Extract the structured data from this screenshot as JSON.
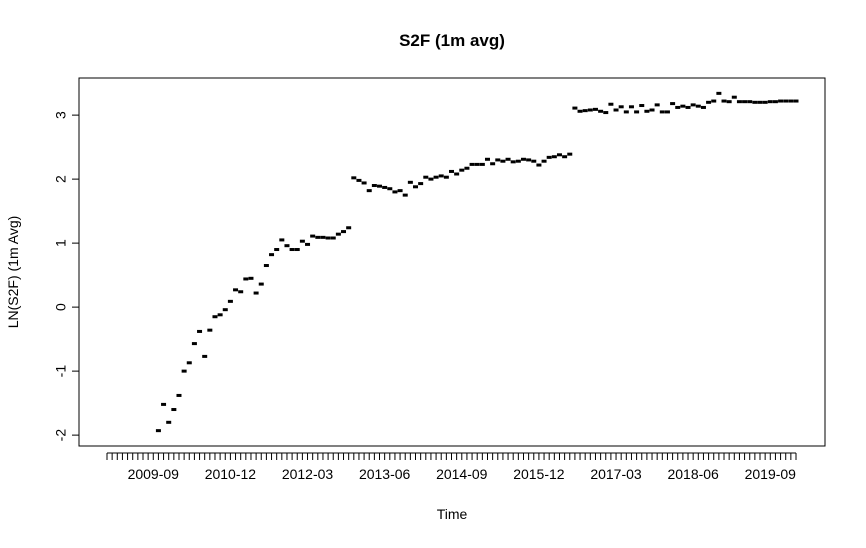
{
  "chart_data": {
    "type": "scatter",
    "title": "S2F (1m avg)",
    "x_label": "Time",
    "y_label": "LN(S2F) (1m Avg)",
    "categories": [
      null,
      null,
      null,
      null,
      null,
      null,
      null,
      null,
      null,
      "2009-09",
      null,
      null,
      null,
      null,
      null,
      null,
      null,
      null,
      null,
      null,
      null,
      null,
      null,
      null,
      "2010-12",
      null,
      null,
      null,
      null,
      null,
      null,
      null,
      null,
      null,
      null,
      null,
      null,
      null,
      null,
      "2012-03",
      null,
      null,
      null,
      null,
      null,
      null,
      null,
      null,
      null,
      null,
      null,
      null,
      null,
      null,
      "2013-06",
      null,
      null,
      null,
      null,
      null,
      null,
      null,
      null,
      null,
      null,
      null,
      null,
      null,
      null,
      "2014-09",
      null,
      null,
      null,
      null,
      null,
      null,
      null,
      null,
      null,
      null,
      null,
      null,
      null,
      null,
      "2015-12",
      null,
      null,
      null,
      null,
      null,
      null,
      null,
      null,
      null,
      null,
      null,
      null,
      null,
      null,
      "2017-03",
      null,
      null,
      null,
      null,
      null,
      null,
      null,
      null,
      null,
      null,
      null,
      null,
      null,
      null,
      "2018-06",
      null,
      null,
      null,
      null,
      null,
      null,
      null,
      null,
      null,
      null,
      null,
      null,
      null,
      null,
      "2019-09",
      null,
      null,
      null,
      null,
      null
    ],
    "values": [
      null,
      null,
      null,
      null,
      null,
      null,
      null,
      null,
      null,
      null,
      -1.93,
      -1.52,
      -1.8,
      -1.6,
      -1.38,
      -1.0,
      -0.87,
      -0.57,
      -0.38,
      -0.77,
      -0.36,
      -0.15,
      -0.12,
      -0.04,
      0.09,
      0.27,
      0.24,
      0.44,
      0.45,
      0.22,
      0.36,
      0.65,
      0.82,
      0.9,
      1.05,
      0.96,
      0.9,
      0.9,
      1.03,
      0.98,
      1.11,
      1.09,
      1.09,
      1.08,
      1.08,
      1.14,
      1.18,
      1.24,
      2.02,
      1.98,
      1.94,
      1.82,
      1.9,
      1.89,
      1.87,
      1.85,
      1.8,
      1.82,
      1.75,
      1.95,
      1.88,
      1.93,
      2.03,
      2.0,
      2.03,
      2.05,
      2.03,
      2.12,
      2.08,
      2.14,
      2.17,
      2.23,
      2.23,
      2.23,
      2.31,
      2.24,
      2.3,
      2.28,
      2.31,
      2.27,
      2.28,
      2.31,
      2.3,
      2.28,
      2.22,
      2.28,
      2.34,
      2.35,
      2.38,
      2.35,
      2.39,
      3.11,
      3.06,
      3.07,
      3.08,
      3.09,
      3.06,
      3.04,
      3.17,
      3.08,
      3.13,
      3.05,
      3.13,
      3.05,
      3.15,
      3.06,
      3.08,
      3.16,
      3.05,
      3.05,
      3.18,
      3.12,
      3.14,
      3.12,
      3.16,
      3.14,
      3.12,
      3.2,
      3.22,
      3.34,
      3.22,
      3.21,
      3.28,
      3.21,
      3.21,
      3.21,
      3.2,
      3.2,
      3.2,
      3.21,
      3.21,
      3.22,
      3.22,
      3.22,
      3.22
    ],
    "color": "#000000",
    "ylim": [
      -2.17,
      3.58
    ],
    "yticks": [
      -2,
      -1,
      0,
      1,
      2,
      3
    ]
  }
}
